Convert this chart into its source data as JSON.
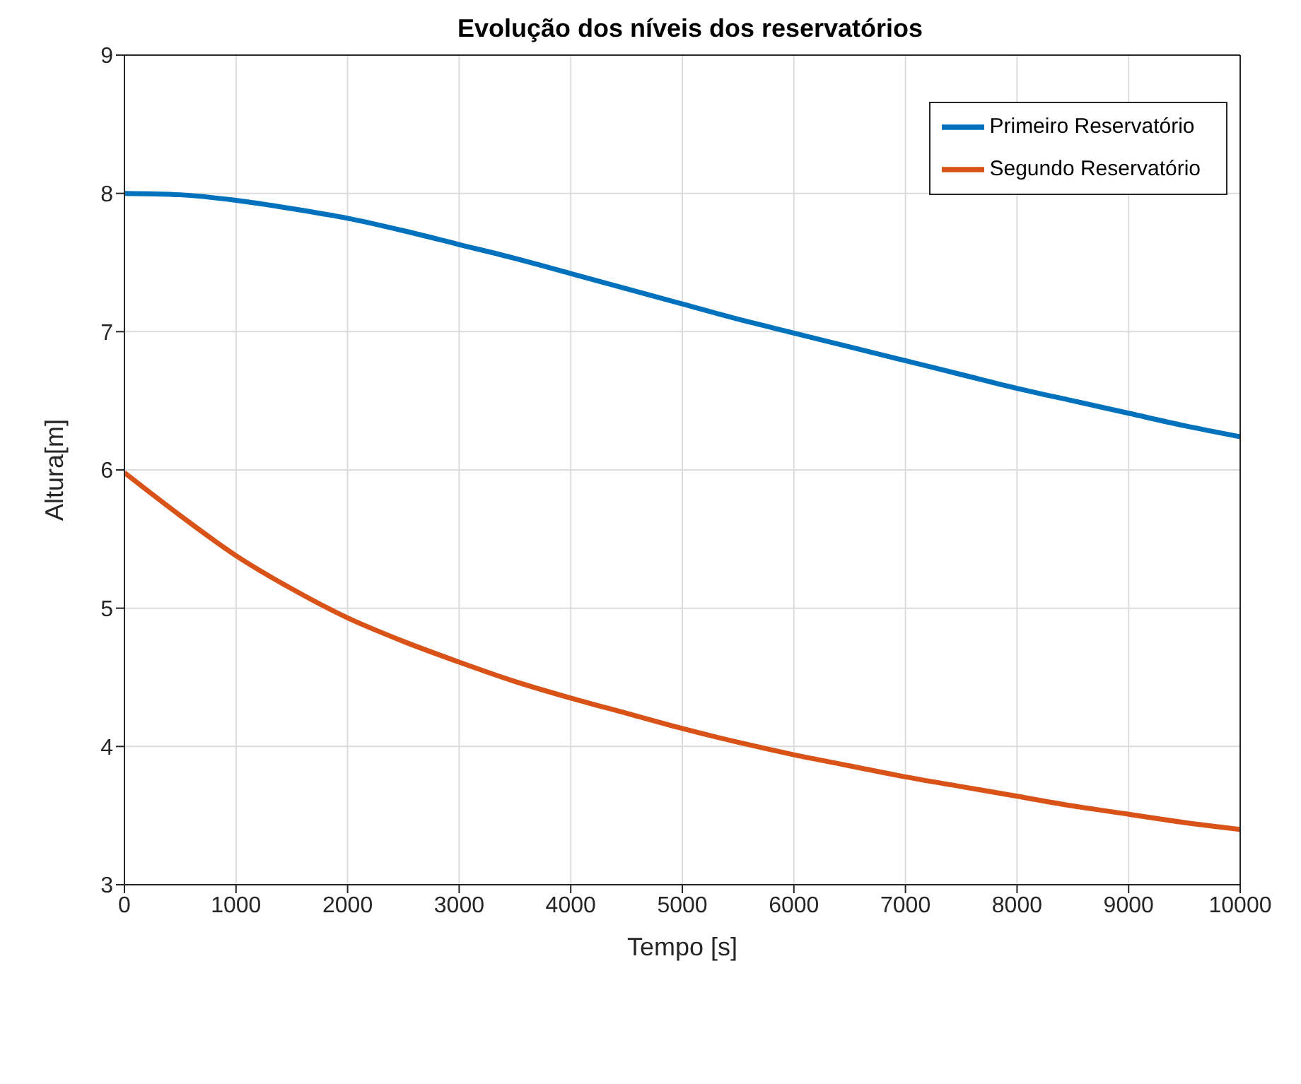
{
  "chart_data": {
    "type": "line",
    "title": "Evolução dos níveis dos reservatórios",
    "xlabel": "Tempo [s]",
    "ylabel": "Altura[m]",
    "x": [
      0,
      500,
      1000,
      1500,
      2000,
      2500,
      3000,
      3500,
      4000,
      4500,
      5000,
      5500,
      6000,
      6500,
      7000,
      7500,
      8000,
      8500,
      9000,
      9500,
      10000
    ],
    "series": [
      {
        "name": "Primeiro Reservatório",
        "color": "#0072bd",
        "values": [
          8.0,
          7.99,
          7.95,
          7.89,
          7.82,
          7.73,
          7.63,
          7.53,
          7.42,
          7.31,
          7.2,
          7.09,
          6.99,
          6.89,
          6.79,
          6.69,
          6.59,
          6.5,
          6.41,
          6.32,
          6.24
        ]
      },
      {
        "name": "Segundo Reservatório",
        "color": "#d95319",
        "values": [
          5.98,
          5.67,
          5.38,
          5.14,
          4.93,
          4.76,
          4.61,
          4.47,
          4.35,
          4.24,
          4.13,
          4.03,
          3.94,
          3.86,
          3.78,
          3.71,
          3.64,
          3.57,
          3.51,
          3.45,
          3.4
        ]
      }
    ],
    "xlim": [
      0,
      10000
    ],
    "xticks": [
      0,
      1000,
      2000,
      3000,
      4000,
      5000,
      6000,
      7000,
      8000,
      9000,
      10000
    ],
    "ylim": [
      3,
      9
    ],
    "yticks": [
      3,
      4,
      5,
      6,
      7,
      8,
      9
    ],
    "grid": true,
    "legend": "top right",
    "marker": "none",
    "line_style": "solid"
  }
}
